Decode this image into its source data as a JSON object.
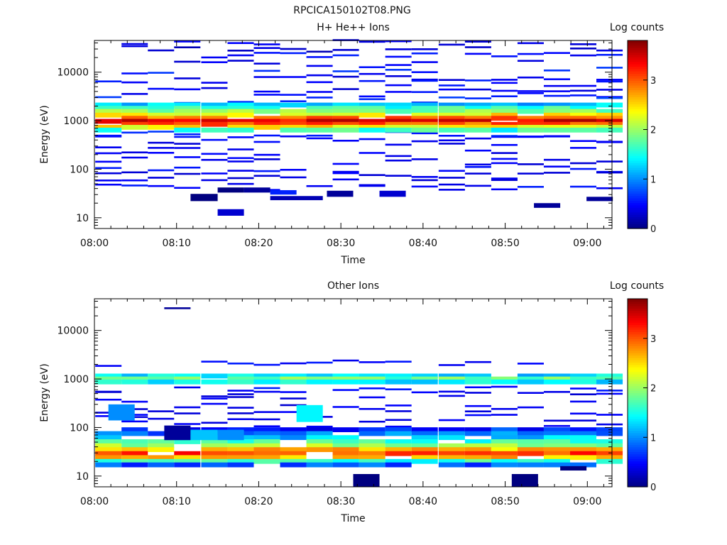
{
  "figure": {
    "title": "RPCICA150102T08.PNG"
  },
  "chart_data": [
    {
      "type": "heatmap",
      "title": "H+ He++ Ions",
      "xlabel": "Time",
      "ylabel": "Energy (eV)",
      "colorbar_label": "Log counts",
      "x_ticks": [
        "08:00",
        "08:10",
        "08:20",
        "08:30",
        "08:40",
        "08:50",
        "09:00"
      ],
      "x_range_minutes": [
        0,
        63
      ],
      "y_scale": "log",
      "y_ticks": [
        "10",
        "100",
        "1000",
        "10000"
      ],
      "y_range": [
        6,
        45000
      ],
      "z_range": [
        0,
        3.8
      ],
      "colorbar_ticks": [
        "0",
        "1",
        "2",
        "3"
      ],
      "colormap": "jet",
      "time_bins_minutes": [
        1.7,
        4.9,
        8.1,
        11.3,
        14.6,
        17.8,
        21.0,
        24.2,
        27.4,
        30.6,
        33.8,
        37.0,
        40.2,
        43.5,
        46.7,
        49.9,
        53.1,
        56.3,
        59.5,
        62.7
      ],
      "streaks": [
        {
          "e": 40000,
          "w": 0.05,
          "z": 0.3
        },
        {
          "e": 30000,
          "w": 0.06,
          "z": 0.2
        },
        {
          "e": 22000,
          "w": 0.05,
          "z": 0.4
        },
        {
          "e": 15000,
          "w": 0.05,
          "z": 0.3
        },
        {
          "e": 11000,
          "w": 0.05,
          "z": 0.5
        },
        {
          "e": 8000,
          "w": 0.05,
          "z": 0.3
        },
        {
          "e": 6000,
          "w": 0.05,
          "z": 0.4
        },
        {
          "e": 4500,
          "w": 0.05,
          "z": 0.3
        },
        {
          "e": 3500,
          "w": 0.05,
          "z": 0.4
        },
        {
          "e": 2700,
          "w": 0.05,
          "z": 0.6
        },
        {
          "e": 550,
          "w": 0.05,
          "z": 0.5
        },
        {
          "e": 420,
          "w": 0.05,
          "z": 0.4
        },
        {
          "e": 320,
          "w": 0.05,
          "z": 0.3
        },
        {
          "e": 250,
          "w": 0.05,
          "z": 0.3
        },
        {
          "e": 190,
          "w": 0.05,
          "z": 0.3
        },
        {
          "e": 140,
          "w": 0.05,
          "z": 0.3
        },
        {
          "e": 100,
          "w": 0.05,
          "z": 0.4
        },
        {
          "e": 75,
          "w": 0.05,
          "z": 0.3
        },
        {
          "e": 55,
          "w": 0.05,
          "z": 0.3
        },
        {
          "e": 42,
          "w": 0.05,
          "z": 0.4
        }
      ],
      "band": [
        {
          "e": 2100,
          "w": 0.05,
          "z": 1.2
        },
        {
          "e": 1800,
          "w": 0.05,
          "z": 1.6
        },
        {
          "e": 1550,
          "w": 0.05,
          "z": 1.9
        },
        {
          "e": 1300,
          "w": 0.05,
          "z": 2.4
        },
        {
          "e": 1120,
          "w": 0.05,
          "z": 2.9
        },
        {
          "e": 970,
          "w": 0.05,
          "z": 3.4
        },
        {
          "e": 840,
          "w": 0.05,
          "z": 3.0
        },
        {
          "e": 730,
          "w": 0.05,
          "z": 2.4
        },
        {
          "e": 640,
          "w": 0.05,
          "z": 1.6
        }
      ],
      "blocks": [
        {
          "t0": 11.7,
          "t1": 15.0,
          "e0": 22,
          "e1": 31,
          "z": 0.0
        },
        {
          "t0": 15.0,
          "t1": 18.2,
          "e0": 11,
          "e1": 15,
          "z": 0.3
        },
        {
          "t0": 15.0,
          "t1": 18.2,
          "e0": 33,
          "e1": 42,
          "z": 0.0
        },
        {
          "t0": 18.2,
          "t1": 21.4,
          "e0": 33,
          "e1": 42,
          "z": 0.1
        },
        {
          "t0": 21.4,
          "t1": 24.6,
          "e0": 30,
          "e1": 37,
          "z": 0.6
        },
        {
          "t0": 21.4,
          "t1": 27.8,
          "e0": 23,
          "e1": 28,
          "z": 0.2
        },
        {
          "t0": 28.3,
          "t1": 31.5,
          "e0": 27,
          "e1": 36,
          "z": 0.1
        },
        {
          "t0": 34.7,
          "t1": 37.9,
          "e0": 27,
          "e1": 36,
          "z": 0.3
        },
        {
          "t0": 59.9,
          "t1": 63.1,
          "e0": 22,
          "e1": 27,
          "z": 0.1
        },
        {
          "t0": 53.5,
          "t1": 56.7,
          "e0": 16,
          "e1": 20,
          "z": 0.1
        }
      ]
    },
    {
      "type": "heatmap",
      "title": "Other Ions",
      "xlabel": "Time",
      "ylabel": "Energy (eV)",
      "colorbar_label": "Log counts",
      "x_ticks": [
        "08:00",
        "08:10",
        "08:20",
        "08:30",
        "08:40",
        "08:50",
        "09:00"
      ],
      "x_range_minutes": [
        0,
        63
      ],
      "y_scale": "log",
      "y_ticks": [
        "10",
        "100",
        "1000",
        "10000"
      ],
      "y_range": [
        6,
        45000
      ],
      "z_range": [
        0,
        3.8
      ],
      "colorbar_ticks": [
        "0",
        "1",
        "2",
        "3"
      ],
      "colormap": "jet",
      "time_bins_minutes": [
        1.7,
        4.9,
        8.1,
        11.3,
        14.6,
        17.8,
        21.0,
        24.2,
        27.4,
        30.6,
        33.8,
        37.0,
        40.2,
        43.5,
        46.7,
        49.9,
        53.1,
        56.3,
        59.5,
        62.7
      ],
      "streaks": [
        {
          "e": 2100,
          "w": 0.05,
          "z": 0.4
        },
        {
          "e": 620,
          "w": 0.05,
          "z": 0.4
        },
        {
          "e": 480,
          "w": 0.05,
          "z": 0.3
        },
        {
          "e": 370,
          "w": 0.05,
          "z": 0.3
        },
        {
          "e": 280,
          "w": 0.05,
          "z": 0.3
        },
        {
          "e": 210,
          "w": 0.05,
          "z": 0.3
        },
        {
          "e": 160,
          "w": 0.05,
          "z": 0.3
        },
        {
          "e": 120,
          "w": 0.05,
          "z": 0.3
        }
      ],
      "band": [
        {
          "e": 1150,
          "w": 0.05,
          "z": 1.3
        },
        {
          "e": 1000,
          "w": 0.05,
          "z": 1.8
        },
        {
          "e": 870,
          "w": 0.05,
          "z": 1.4
        },
        {
          "e": 90,
          "w": 0.05,
          "z": 0.6
        },
        {
          "e": 75,
          "w": 0.05,
          "z": 0.9
        },
        {
          "e": 62,
          "w": 0.05,
          "z": 1.2
        },
        {
          "e": 51,
          "w": 0.05,
          "z": 1.6
        },
        {
          "e": 42,
          "w": 0.05,
          "z": 2.0
        },
        {
          "e": 35,
          "w": 0.05,
          "z": 2.6
        },
        {
          "e": 29,
          "w": 0.05,
          "z": 3.1
        },
        {
          "e": 24,
          "w": 0.05,
          "z": 2.6
        },
        {
          "e": 20,
          "w": 0.05,
          "z": 1.6
        },
        {
          "e": 17,
          "w": 0.05,
          "z": 0.8
        }
      ],
      "blocks": [
        {
          "t0": 1.7,
          "t1": 4.9,
          "e0": 140,
          "e1": 300,
          "z": 1.0
        },
        {
          "t0": 24.6,
          "t1": 27.8,
          "e0": 130,
          "e1": 290,
          "z": 1.4
        },
        {
          "t0": 8.5,
          "t1": 11.7,
          "e0": 55,
          "e1": 110,
          "z": 0.1
        },
        {
          "t0": 11.7,
          "t1": 15.0,
          "e0": 55,
          "e1": 90,
          "z": 1.2
        },
        {
          "t0": 15.0,
          "t1": 18.2,
          "e0": 55,
          "e1": 90,
          "z": 1.0
        },
        {
          "t0": 31.5,
          "t1": 34.7,
          "e0": 6,
          "e1": 11,
          "z": 0.0
        },
        {
          "t0": 50.8,
          "t1": 54.0,
          "e0": 6,
          "e1": 11,
          "z": 0.0
        },
        {
          "t0": 56.7,
          "t1": 59.9,
          "e0": 13,
          "e1": 16,
          "z": 0.0
        },
        {
          "t0": 8.5,
          "t1": 11.7,
          "e0": 27500,
          "e1": 30000,
          "z": 0.1
        }
      ]
    }
  ]
}
